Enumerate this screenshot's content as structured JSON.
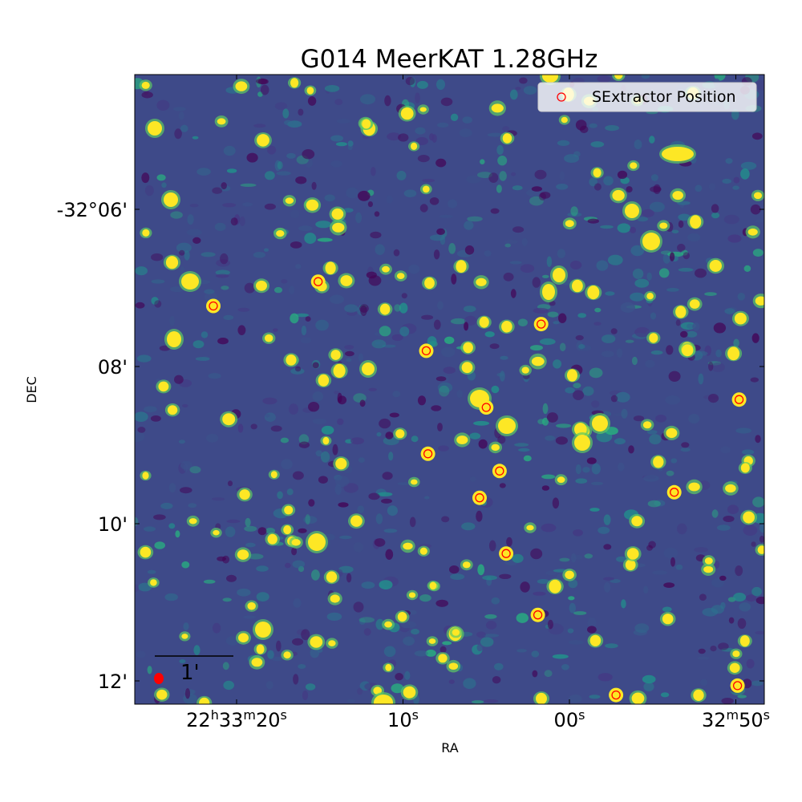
{
  "chart_data": {
    "type": "scatter",
    "title": "G014 MeerKAT 1.28GHz",
    "xlabel": "RA",
    "ylabel": "DEC",
    "background": "radio continuum intensity image (viridis colormap)",
    "xlim_sec": [
      25.8,
      48.9
    ],
    "ylim_arcmin": [
      12.3,
      4.29
    ],
    "x_ticks": [
      {
        "value": 20,
        "h": "22",
        "m": "33",
        "s": "20",
        "kind": "full"
      },
      {
        "value": 10,
        "s": "10",
        "kind": "sec"
      },
      {
        "value": 0,
        "s": "00",
        "kind": "sec"
      },
      {
        "value": -10,
        "m": "32",
        "s": "50",
        "kind": "min"
      }
    ],
    "y_ticks": [
      {
        "value": 6,
        "label": "-32°06'"
      },
      {
        "value": 8,
        "label": "08'"
      },
      {
        "value": 10,
        "label": "10'"
      },
      {
        "value": 12,
        "label": "12'"
      }
    ],
    "legend": {
      "entries": [
        "SExtractor Position"
      ],
      "position": "upper right"
    },
    "scalebar": {
      "label": "1'"
    },
    "series": [
      {
        "name": "SExtractor Position",
        "marker": "open circle",
        "color": "#ff0000",
        "points": [
          {
            "ra_s": 15.1,
            "dec_min": 6.92
          },
          {
            "ra_s": 21.4,
            "dec_min": 7.23
          },
          {
            "ra_s": 8.6,
            "dec_min": 7.8
          },
          {
            "ra_s": 1.7,
            "dec_min": 7.46
          },
          {
            "ra_s": 5.0,
            "dec_min": 8.52
          },
          {
            "ra_s": -10.2,
            "dec_min": 8.42
          },
          {
            "ra_s": 8.5,
            "dec_min": 9.11
          },
          {
            "ra_s": 4.2,
            "dec_min": 9.33
          },
          {
            "ra_s": 5.4,
            "dec_min": 9.67
          },
          {
            "ra_s": -6.3,
            "dec_min": 9.6
          },
          {
            "ra_s": 3.8,
            "dec_min": 10.38
          },
          {
            "ra_s": 1.9,
            "dec_min": 11.16
          },
          {
            "ra_s": -2.8,
            "dec_min": 12.18
          },
          {
            "ra_s": -10.1,
            "dec_min": 12.06
          }
        ]
      }
    ]
  }
}
